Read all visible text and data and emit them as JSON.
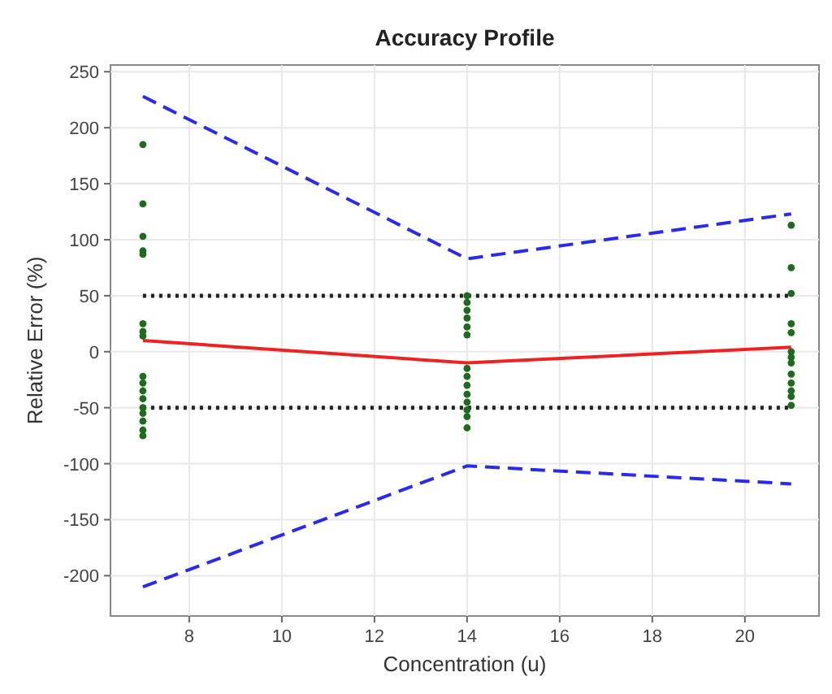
{
  "chart_data": {
    "type": "scatter",
    "title": "Accuracy Profile",
    "xlabel": "Concentration (u)",
    "ylabel": "Relative Error (%)",
    "xlim": [
      6.3,
      21.6
    ],
    "ylim": [
      -236,
      256
    ],
    "xticks": [
      8,
      10,
      12,
      14,
      16,
      18,
      20
    ],
    "yticks": [
      -200,
      -150,
      -100,
      -50,
      0,
      50,
      100,
      150,
      200,
      250
    ],
    "grid": true,
    "series": [
      {
        "color": "#1e6b1e",
        "marker": "circle",
        "x": [
          7,
          7,
          7,
          7,
          7,
          7,
          7,
          7,
          7,
          7,
          7,
          7,
          7,
          7,
          7,
          7,
          7,
          14,
          14,
          14,
          14,
          14,
          14,
          14,
          14,
          14,
          14,
          14,
          14,
          14,
          14,
          21,
          21,
          21,
          21,
          21,
          21,
          21,
          21,
          21,
          21,
          21,
          21,
          21
        ],
        "values": [
          185,
          132,
          103,
          90,
          87,
          25,
          18,
          14,
          -22,
          -28,
          -35,
          -42,
          -50,
          -55,
          -62,
          -70,
          -75,
          50,
          44,
          37,
          30,
          22,
          15,
          -15,
          -22,
          -30,
          -38,
          -45,
          -52,
          -58,
          -68,
          113,
          75,
          52,
          25,
          17,
          0,
          -5,
          -10,
          -20,
          -28,
          -35,
          -40,
          -48
        ]
      },
      {
        "type": "line",
        "color": "#ee2222",
        "line_style": "solid",
        "marker": "none",
        "x": [
          7,
          14,
          21
        ],
        "values": [
          10,
          -10,
          4
        ]
      },
      {
        "type": "line",
        "color": "#2a2aee",
        "line_style": "dashed",
        "marker": "none",
        "x": [
          7,
          14,
          21
        ],
        "values": [
          228,
          83,
          123
        ]
      },
      {
        "type": "line",
        "color": "#2a2aee",
        "line_style": "dashed",
        "marker": "none",
        "x": [
          7,
          14,
          21
        ],
        "values": [
          -210,
          -102,
          -118
        ]
      },
      {
        "type": "line",
        "color": "#222222",
        "line_style": "dotted",
        "marker": "none",
        "x": [
          7,
          21
        ],
        "values": [
          50,
          50
        ]
      },
      {
        "type": "line",
        "color": "#222222",
        "line_style": "dotted",
        "marker": "none",
        "x": [
          7,
          21
        ],
        "values": [
          -50,
          -50
        ]
      }
    ]
  }
}
